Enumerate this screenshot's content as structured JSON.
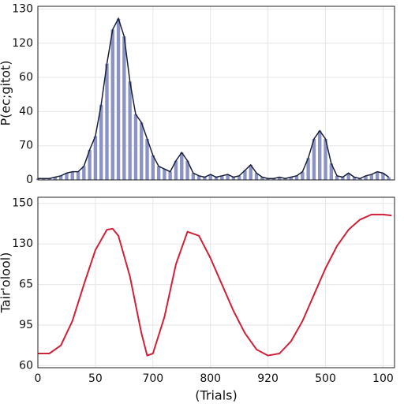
{
  "chart_data": [
    {
      "type": "bar",
      "ylabel": "P(ec;gitot)",
      "color": "#8a93c4",
      "line_color": "#1a1f3a",
      "x": [
        0,
        1,
        2,
        3,
        4,
        5,
        6,
        7,
        8,
        9,
        10,
        11,
        12,
        13,
        14,
        15,
        16,
        17,
        18,
        19,
        20,
        21,
        22,
        23,
        24,
        25,
        26,
        27,
        28,
        29,
        30,
        31,
        32,
        33,
        34,
        35,
        36,
        37,
        38,
        39,
        40,
        41,
        42,
        43,
        44,
        45,
        46,
        47,
        48,
        49,
        50,
        51,
        52,
        53,
        54,
        55,
        56,
        57,
        58,
        59,
        60,
        61
      ],
      "values": [
        1,
        1,
        1,
        2,
        3,
        5,
        6,
        6,
        10,
        22,
        32,
        55,
        85,
        110,
        118,
        105,
        72,
        48,
        42,
        30,
        18,
        10,
        8,
        6,
        14,
        20,
        14,
        5,
        3,
        2,
        4,
        2,
        3,
        4,
        2,
        3,
        7,
        11,
        5,
        2,
        1,
        1,
        2,
        1,
        2,
        3,
        6,
        16,
        30,
        36,
        30,
        12,
        3,
        2,
        5,
        2,
        1,
        3,
        4,
        6,
        5,
        2
      ],
      "xlim": [
        0,
        62
      ],
      "xticks": [
        0,
        10,
        20,
        30,
        40,
        50,
        60
      ],
      "ylim": [
        0,
        127
      ],
      "yticks": [
        0,
        {
          "value": 25,
          "label": "70"
        },
        {
          "value": 50,
          "label": "40"
        },
        {
          "value": 75,
          "label": "60"
        },
        {
          "value": 100,
          "label": "120"
        },
        {
          "value": 125,
          "label": "130"
        }
      ],
      "grid": true
    },
    {
      "type": "line",
      "ylabel": "Tair'olool)",
      "xlabel": "(Trials)",
      "color": "#d0213a",
      "x": [
        0,
        2,
        4,
        6,
        8,
        10,
        12,
        13,
        14,
        16,
        18,
        19,
        20,
        22,
        24,
        26,
        28,
        30,
        32,
        34,
        36,
        38,
        40,
        42,
        44,
        46,
        48,
        50,
        52,
        54,
        56,
        58,
        60,
        61.5
      ],
      "values": [
        66,
        66,
        70,
        82,
        100,
        117,
        127,
        127.5,
        124,
        104,
        76,
        65,
        66,
        84,
        110,
        126,
        124,
        113,
        100,
        87,
        76,
        68,
        65,
        66,
        72,
        82,
        95,
        108,
        119,
        127,
        132,
        134.5,
        134.5,
        134
      ],
      "xlim": [
        0,
        62
      ],
      "xticks": [
        0,
        {
          "value": 10,
          "label": "50"
        },
        {
          "value": 20,
          "label": "700"
        },
        {
          "value": 30,
          "label": "800"
        },
        {
          "value": 40,
          "label": "920"
        },
        {
          "value": 50,
          "label": "500"
        },
        {
          "value": 60,
          "label": "100"
        }
      ],
      "ylim": [
        59,
        143
      ],
      "yticks": [
        60,
        {
          "value": 80,
          "label": "95"
        },
        {
          "value": 100,
          "label": "65"
        },
        {
          "value": 120,
          "label": "130"
        },
        {
          "value": 140,
          "label": "150"
        }
      ],
      "grid": true
    }
  ]
}
